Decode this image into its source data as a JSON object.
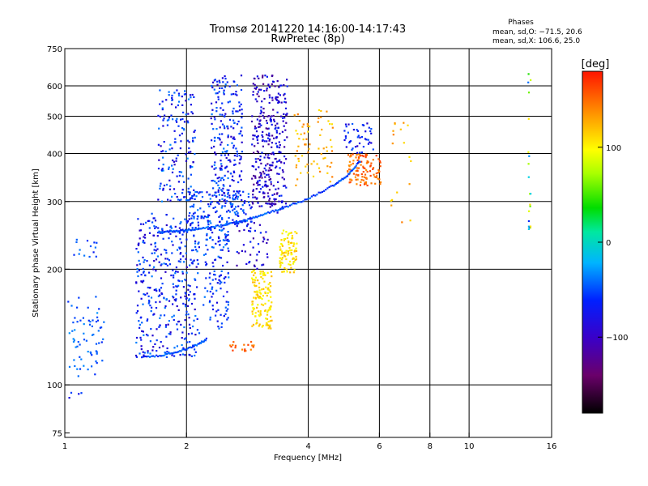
{
  "chart_data": {
    "type": "scatter",
    "title": "Tromsø 20141220 14:16:00-14:17:43",
    "subtitle": "RwPretec (8p)",
    "xlabel": "Frequency [MHz]",
    "ylabel": "Stationary phase Virtual Height [km]",
    "xscale": "log",
    "yscale": "log",
    "xlim": [
      1,
      16
    ],
    "ylim": [
      73,
      750
    ],
    "x_ticks": [
      1,
      2,
      4,
      6,
      8,
      10,
      16
    ],
    "x_gridlines": [
      2,
      4,
      6,
      8,
      10
    ],
    "y_ticks": [
      75,
      100,
      200,
      300,
      400,
      500,
      600,
      750
    ],
    "y_gridlines": [
      100,
      200,
      300,
      400,
      500,
      600
    ],
    "grid": true,
    "phase_stats": {
      "header": "Phases",
      "o_line": "mean, sd,O: −71.5, 20.6",
      "x_line": "mean, sd,X: 106.6, 25.0"
    },
    "colorbar": {
      "label": "[deg]",
      "range": [
        -180,
        180
      ],
      "ticks": [
        100,
        0,
        -100
      ],
      "tick_labels": [
        "100",
        "0",
        "−100"
      ],
      "colormap": "rainbow (black → purple → blue → cyan → green → yellow → orange → red)"
    },
    "clusters": [
      {
        "x": [
          1.0,
          1.25
        ],
        "y": [
          105,
          170
        ],
        "phase": [
          -85,
          -55
        ],
        "n": 70
      },
      {
        "x": [
          1.02,
          1.2
        ],
        "y": [
          215,
          240
        ],
        "phase": [
          -90,
          -60
        ],
        "n": 14
      },
      {
        "x": [
          1.0,
          1.12
        ],
        "y": [
          92,
          96
        ],
        "phase": [
          -100,
          -70
        ],
        "n": 4
      },
      {
        "x": [
          1.5,
          2.15
        ],
        "y": [
          118,
          280
        ],
        "phase": [
          -110,
          -60
        ],
        "n": 380
      },
      {
        "x": [
          1.7,
          2.1
        ],
        "y": [
          300,
          590
        ],
        "phase": [
          -110,
          -55
        ],
        "n": 160
      },
      {
        "x": [
          2.0,
          2.9
        ],
        "y": [
          260,
          320
        ],
        "phase": [
          -100,
          -60
        ],
        "n": 170
      },
      {
        "x": [
          2.2,
          2.55
        ],
        "y": [
          140,
          260
        ],
        "phase": [
          -100,
          -60
        ],
        "n": 130
      },
      {
        "x": [
          2.3,
          2.6
        ],
        "y": [
          300,
          640
        ],
        "phase": [
          -110,
          -60
        ],
        "n": 150
      },
      {
        "x": [
          2.6,
          2.75
        ],
        "y": [
          330,
          640
        ],
        "phase": [
          -110,
          -70
        ],
        "n": 60
      },
      {
        "x": [
          2.9,
          3.35
        ],
        "y": [
          290,
          640
        ],
        "phase": [
          -130,
          -85
        ],
        "n": 250
      },
      {
        "x": [
          3.35,
          3.55
        ],
        "y": [
          280,
          630
        ],
        "phase": [
          -120,
          -80
        ],
        "n": 80
      },
      {
        "x": [
          2.65,
          3.2
        ],
        "y": [
          200,
          270
        ],
        "phase": [
          -125,
          -80
        ],
        "n": 45
      },
      {
        "x": [
          2.9,
          3.25
        ],
        "y": [
          140,
          200
        ],
        "phase": [
          90,
          130
        ],
        "n": 130
      },
      {
        "x": [
          3.4,
          3.75
        ],
        "y": [
          195,
          255
        ],
        "phase": [
          90,
          130
        ],
        "n": 90
      },
      {
        "x": [
          2.55,
          2.95
        ],
        "y": [
          122,
          130
        ],
        "phase": [
          140,
          170
        ],
        "n": 18
      },
      {
        "x": [
          3.7,
          4.6
        ],
        "y": [
          330,
          520
        ],
        "phase": [
          110,
          150
        ],
        "n": 70
      },
      {
        "x": [
          5.0,
          6.05
        ],
        "y": [
          330,
          400
        ],
        "phase": [
          140,
          170
        ],
        "n": 110
      },
      {
        "x": [
          4.9,
          5.8
        ],
        "y": [
          400,
          480
        ],
        "phase": [
          -110,
          -70
        ],
        "n": 45
      },
      {
        "x": [
          6.4,
          7.2
        ],
        "y": [
          260,
          500
        ],
        "phase": [
          110,
          150
        ],
        "n": 18
      },
      {
        "x": [
          14.0,
          14.2
        ],
        "y": [
          250,
          650
        ],
        "phase": [
          -110,
          120
        ],
        "n": 20
      }
    ],
    "trace": {
      "description": "lower envelope of F-layer echoes",
      "x": [
        1.7,
        1.85,
        2.0,
        2.2,
        2.5,
        2.8,
        3.1,
        3.5,
        4.0,
        4.6,
        5.0,
        5.4
      ],
      "y": [
        250,
        251,
        253,
        256,
        261,
        268,
        278,
        290,
        305,
        330,
        350,
        385
      ],
      "phase": -75
    },
    "e_trace": {
      "x": [
        1.55,
        1.7,
        1.85,
        2.0,
        2.15,
        2.25
      ],
      "y": [
        118,
        119,
        121,
        124,
        128,
        132
      ],
      "phase": -75
    }
  }
}
